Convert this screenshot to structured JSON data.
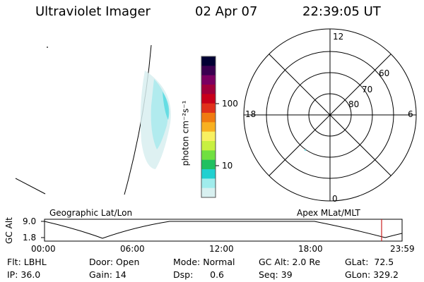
{
  "header": {
    "instrument": "Ultraviolet Imager",
    "date": "02 Apr 07",
    "time": "22:39:05 UT"
  },
  "colorbar": {
    "ticks": [
      "100",
      "10"
    ],
    "unit_label": "photon cm⁻²s⁻¹",
    "colors": [
      "#000033",
      "#3a0050",
      "#7a0060",
      "#a0003a",
      "#c8001a",
      "#e0301a",
      "#f07a10",
      "#f8b020",
      "#f8f060",
      "#c8f040",
      "#70e040",
      "#20c060",
      "#20d0d0",
      "#a0ecec",
      "#d8f0f0"
    ]
  },
  "polar": {
    "mlt_labels": {
      "top": "12",
      "bottom": "0",
      "left": "18",
      "right": "6"
    },
    "lat_labels": [
      "60",
      "70",
      "80"
    ]
  },
  "timeline": {
    "left_label": "Geographic Lat/Lon",
    "right_label": "Apex MLat/MLT",
    "y_axis_label": "GC Alt",
    "y_ticks": [
      "9.0",
      "1.8"
    ],
    "x_ticks": [
      "00:00",
      "06:00",
      "12:00",
      "18:00",
      "23:59"
    ],
    "marker_color": "#cc2020"
  },
  "info": {
    "filter": "Flt: LBHL",
    "door": "Door: Open",
    "mode": "Mode: Normal",
    "gcalt": "GC Alt: 2.0 Re",
    "glat": "GLat:  72.5",
    "ip": "IP: 36.0",
    "gain": "Gain: 14",
    "dsp": "Dsp:      0.6",
    "seq": "Seq: 39",
    "glon": "GLon: 329.2"
  }
}
